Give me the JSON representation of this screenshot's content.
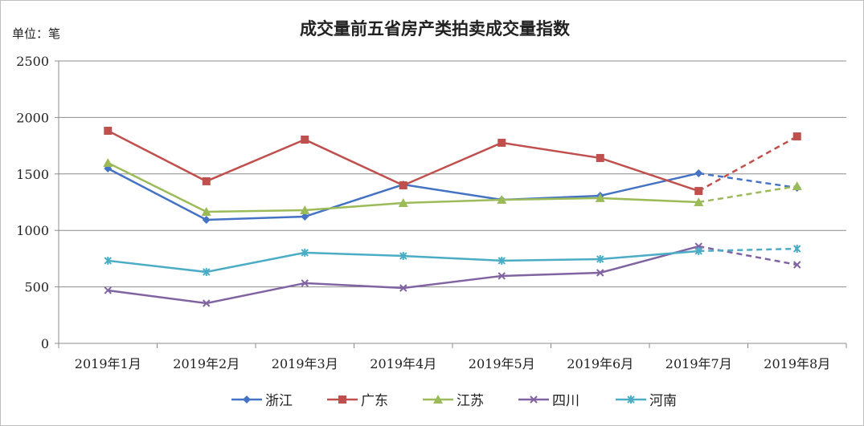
{
  "chart_data": {
    "type": "line",
    "title": "成交量前五省房产类拍卖成交量指数",
    "unit_label": "单位：笔",
    "categories": [
      "2019年1月",
      "2019年2月",
      "2019年3月",
      "2019年4月",
      "2019年5月",
      "2019年6月",
      "2019年7月",
      "2019年8月"
    ],
    "ylim": [
      0,
      2500
    ],
    "yticks": [
      0,
      500,
      1000,
      1500,
      2000,
      2500
    ],
    "grid": true,
    "legend_position": "bottom",
    "dashed_last_segment": true,
    "series": [
      {
        "name": "浙江",
        "color": "#4472c4",
        "marker": "diamond",
        "values": [
          1548,
          1094,
          1122,
          1406,
          1271,
          1307,
          1506,
          1378
        ]
      },
      {
        "name": "广东",
        "color": "#c0504d",
        "marker": "square",
        "values": [
          1882,
          1435,
          1804,
          1399,
          1776,
          1641,
          1349,
          1832
        ]
      },
      {
        "name": "江苏",
        "color": "#9bbb59",
        "marker": "triangle",
        "values": [
          1598,
          1165,
          1179,
          1243,
          1271,
          1286,
          1250,
          1392
        ]
      },
      {
        "name": "四川",
        "color": "#8064a2",
        "marker": "x",
        "values": [
          469,
          355,
          533,
          490,
          597,
          625,
          859,
          696
        ]
      },
      {
        "name": "河南",
        "color": "#4bacc6",
        "marker": "star",
        "values": [
          732,
          632,
          803,
          774,
          732,
          746,
          817,
          838
        ]
      }
    ]
  }
}
